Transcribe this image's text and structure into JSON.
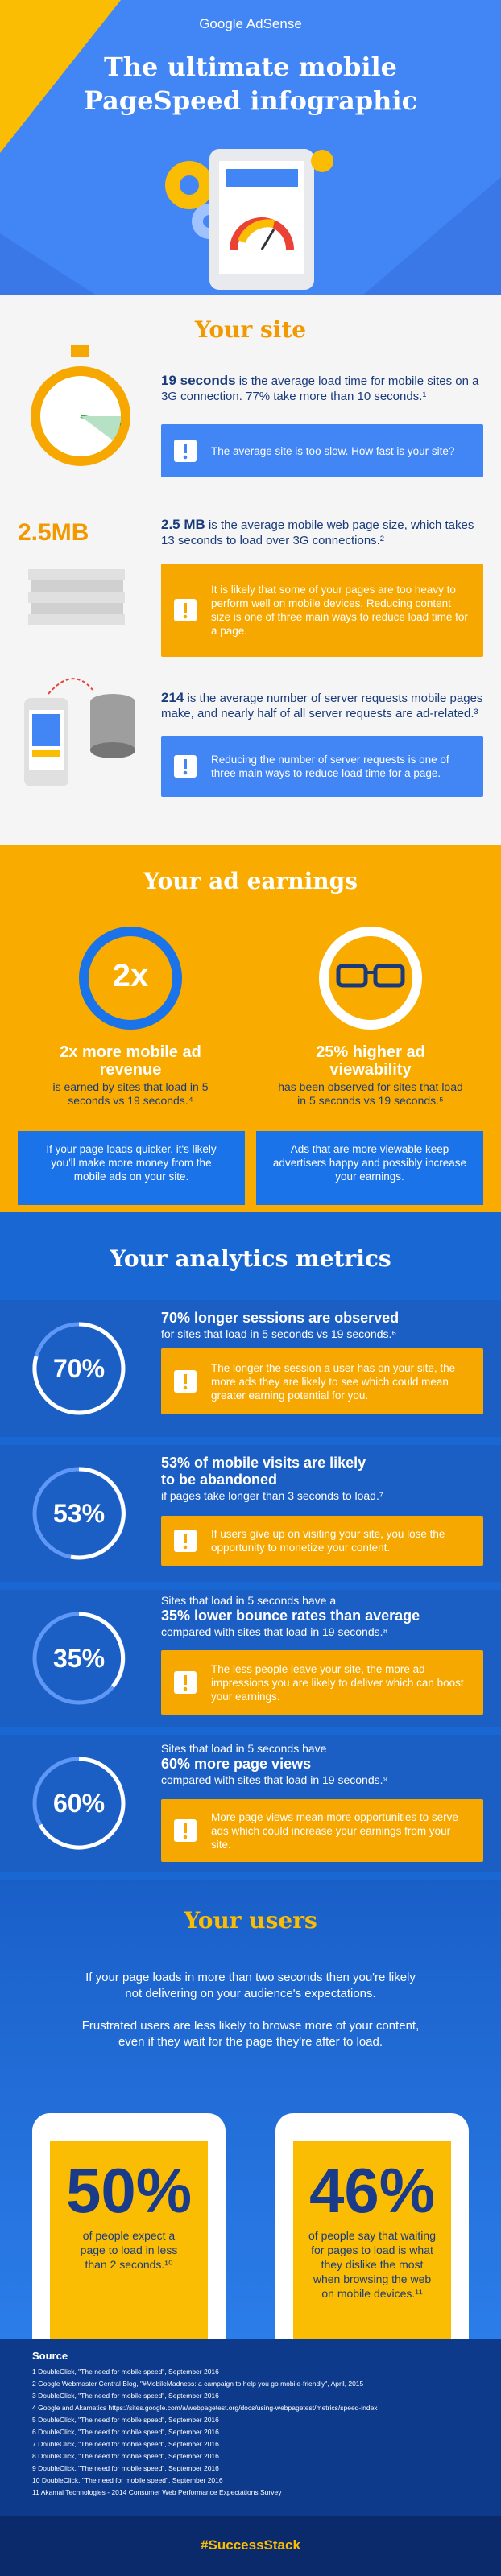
{
  "header": {
    "brand": "Google AdSense",
    "title": "The ultimate mobile PageSpeed infographic"
  },
  "your_site": {
    "title": "Your site",
    "items": [
      {
        "highlight": "19 seconds",
        "text": "is the average load time for mobile sites on a 3G connection. 77% take more than 10 seconds.¹",
        "callout": "The average site is too slow. How fast is your site?"
      },
      {
        "label": "2.5MB",
        "highlight": "2.5 MB",
        "text": "is the average mobile web page size, which takes 13 seconds to load over 3G connections.²",
        "callout": "It is likely that some of your pages are too heavy to perform well on mobile devices. Reducing content size is one of three main ways to reduce load time for a page."
      },
      {
        "highlight": "214",
        "text": "is the average number of server requests mobile pages make, and nearly half of all server requests are ad-related.³",
        "callout": "Reducing the number of server requests is one of three main ways to reduce load time for a page."
      }
    ]
  },
  "ad_earnings": {
    "title": "Your ad earnings",
    "items": [
      {
        "stat": "2x",
        "headline": "2x more mobile ad revenue",
        "text": "is earned by sites that load in 5 seconds vs 19 seconds.⁴",
        "callout": "If your page loads quicker, it's likely you'll make more money from the mobile ads on your site."
      },
      {
        "headline": "25% higher ad viewability",
        "text": "has been observed for sites that load in 5 seconds vs 19 seconds.⁵",
        "callout": "Ads that are more viewable keep advertisers happy and possibly increase your earnings."
      }
    ]
  },
  "analytics": {
    "title": "Your analytics metrics",
    "items": [
      {
        "stat": "70%",
        "headline": "70% longer sessions are observed",
        "text": "for sites that load in 5 seconds vs 19 seconds.⁶",
        "callout": "The longer the session a user has on your site, the more ads they are likely to see which could mean greater earning potential for you."
      },
      {
        "stat": "53%",
        "headline": "53% of mobile visits are likely to be abandoned",
        "text": "if pages take longer than 3 seconds to load.⁷",
        "callout": "If users give up on visiting your site, you lose the opportunity to monetize your content."
      },
      {
        "stat": "35%",
        "lead": "Sites that load in 5 seconds have a",
        "headline": "35% lower bounce rates than average",
        "text": "compared with sites that load in 19 seconds.⁸",
        "callout": "The less people leave your site, the more ad impressions you are likely to deliver which can boost your earnings."
      },
      {
        "stat": "60%",
        "lead": "Sites that load in 5 seconds have",
        "headline": "60% more page views",
        "text": "compared with sites that load in 19 seconds.⁹",
        "callout": "More page views mean more opportunities to serve ads which could increase your earnings from your site."
      }
    ]
  },
  "users": {
    "title": "Your users",
    "paragraphs": [
      "If your page loads in more than two seconds then you're likely not delivering on your audience's expectations.",
      "Frustrated users are less likely to browse more of your content, even if they wait for the page they're after to load."
    ],
    "stats": [
      {
        "stat": "50%",
        "text": "of people expect a page to load in less than 2 seconds.¹⁰"
      },
      {
        "stat": "46%",
        "text": "of people say that waiting for pages to load is what they dislike the most when browsing the web on mobile devices.¹¹"
      }
    ]
  },
  "sources": {
    "title": "Source",
    "items": [
      "1 DoubleClick, \"The need for mobile speed\", September 2016",
      "2 Google Webmaster Central Blog, \"#MobileMadness: a campaign to help you go mobile-friendly\", April, 2015",
      "3 DoubleClick, \"The need for mobile speed\", September 2016",
      "4 Google and Akamatics https://sites.google.com/a/webpagetest.org/docs/using-webpagetest/metrics/speed-index",
      "5 DoubleClick, \"The need for mobile speed\", September 2016",
      "6 DoubleClick, \"The need for mobile speed\", September 2016",
      "7 DoubleClick, \"The need for mobile speed\", September 2016",
      "8 DoubleClick, \"The need for mobile speed\", September 2016",
      "9 DoubleClick, \"The need for mobile speed\", September 2016",
      "10 DoubleClick, \"The need for mobile speed\", September 2016",
      "11 Akamai Technologies - 2014 Consumer Web Performance Expectations Survey"
    ]
  },
  "footer": {
    "hashtag": "#SuccessStack"
  }
}
